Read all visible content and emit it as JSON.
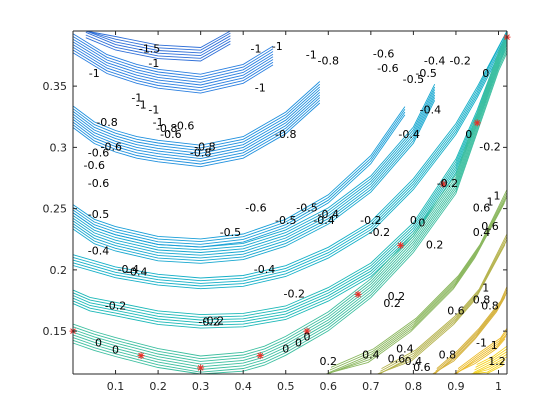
{
  "chart_data": {
    "type": "contour",
    "title": "",
    "xlabel": "",
    "ylabel": "",
    "xlim": [
      0.0,
      1.02
    ],
    "ylim": [
      0.115,
      0.395
    ],
    "xticks": [
      "0.1",
      "0.2",
      "0.3",
      "0.4",
      "0.5",
      "0.6",
      "0.7",
      "0.8",
      "0.9",
      "1"
    ],
    "yticks": [
      "0.15",
      "0.2",
      "0.25",
      "0.3",
      "0.35"
    ],
    "grid": false,
    "colormap": "parula",
    "color_levels": [
      {
        "level": -1.5,
        "color": "#2f6fd8"
      },
      {
        "level": -1,
        "color": "#2a7fe0"
      },
      {
        "level": -0.8,
        "color": "#1f90de"
      },
      {
        "level": -0.6,
        "color": "#1a9fd8"
      },
      {
        "level": -0.5,
        "color": "#19a8d0"
      },
      {
        "level": -0.4,
        "color": "#16b0c8"
      },
      {
        "level": -0.2,
        "color": "#1cb8b8"
      },
      {
        "level": 0,
        "color": "#3dbfa0"
      },
      {
        "level": 0.2,
        "color": "#8cb860"
      },
      {
        "level": 0.4,
        "color": "#b6b450"
      },
      {
        "level": 0.6,
        "color": "#d6b23c"
      },
      {
        "level": 0.8,
        "color": "#ecbc2c"
      },
      {
        "level": 1.2,
        "color": "#f6d420"
      }
    ],
    "series": [
      {
        "level": -0.2,
        "count": 6,
        "x": [
          0.0,
          0.04,
          0.1,
          0.2,
          0.3,
          0.4,
          0.5,
          0.6,
          0.7,
          0.8,
          0.9,
          0.95,
          1.02
        ],
        "y": [
          0.178,
          0.172,
          0.168,
          0.161,
          0.158,
          0.159,
          0.165,
          0.18,
          0.2,
          0.233,
          0.285,
          0.325,
          0.39
        ]
      },
      {
        "level": -0.4,
        "count": 5,
        "x": [
          0.0,
          0.05,
          0.1,
          0.2,
          0.3,
          0.4,
          0.5,
          0.6,
          0.7,
          0.8,
          0.9,
          0.95,
          1.02
        ],
        "y": [
          0.208,
          0.203,
          0.198,
          0.192,
          0.189,
          0.191,
          0.199,
          0.214,
          0.235,
          0.27,
          0.315,
          0.345,
          0.393
        ]
      },
      {
        "level": -0.5,
        "count": 7,
        "x": [
          0.0,
          0.05,
          0.1,
          0.2,
          0.3,
          0.4,
          0.5,
          0.6,
          0.7,
          0.8,
          0.85
        ],
        "y": [
          0.24,
          0.228,
          0.222,
          0.214,
          0.212,
          0.215,
          0.226,
          0.244,
          0.27,
          0.31,
          0.345
        ]
      },
      {
        "level": -0.6,
        "count": 4,
        "x": [
          0.0,
          0.05,
          0.1,
          0.2,
          0.3,
          0.4,
          0.5,
          0.6,
          0.7,
          0.78
        ],
        "y": [
          0.25,
          0.238,
          0.232,
          0.224,
          0.222,
          0.226,
          0.238,
          0.258,
          0.29,
          0.33
        ]
      },
      {
        "level": -0.8,
        "count": 9,
        "x": [
          0.0,
          0.05,
          0.1,
          0.15,
          0.2,
          0.3,
          0.4,
          0.5,
          0.58
        ],
        "y": [
          0.325,
          0.312,
          0.305,
          0.3,
          0.297,
          0.293,
          0.3,
          0.32,
          0.345
        ]
      },
      {
        "level": -1,
        "count": 8,
        "x": [
          0.0,
          0.08,
          0.15,
          0.2,
          0.3,
          0.4,
          0.47
        ],
        "y": [
          0.385,
          0.368,
          0.36,
          0.356,
          0.352,
          0.36,
          0.375
        ]
      },
      {
        "level": -1.5,
        "count": 6,
        "x": [
          0.03,
          0.1,
          0.2,
          0.3,
          0.37
        ],
        "y": [
          0.395,
          0.385,
          0.378,
          0.376,
          0.39
        ]
      },
      {
        "level": 0,
        "count": 8,
        "x": [
          0.0,
          0.05,
          0.1,
          0.2,
          0.3,
          0.4,
          0.45,
          0.5,
          0.6,
          0.7,
          0.8,
          0.9,
          0.95,
          1.0,
          1.02
        ],
        "y": [
          0.148,
          0.142,
          0.137,
          0.128,
          0.122,
          0.125,
          0.13,
          0.138,
          0.158,
          0.185,
          0.222,
          0.27,
          0.32,
          0.37,
          0.385
        ]
      },
      {
        "level": 0.2,
        "count": 6,
        "x": [
          0.6,
          0.7,
          0.8,
          0.9,
          0.95,
          1.02
        ],
        "y": [
          0.115,
          0.13,
          0.155,
          0.19,
          0.215,
          0.26
        ]
      },
      {
        "level": 0.4,
        "count": 5,
        "x": [
          0.72,
          0.8,
          0.9,
          0.95,
          1.02
        ],
        "y": [
          0.115,
          0.13,
          0.16,
          0.18,
          0.225
        ]
      },
      {
        "level": 0.6,
        "count": 5,
        "x": [
          0.85,
          0.9,
          0.95,
          1.0,
          1.02
        ],
        "y": [
          0.115,
          0.13,
          0.148,
          0.17,
          0.182
        ]
      },
      {
        "level": 0.8,
        "count": 5,
        "x": [
          0.9,
          0.95,
          1.0,
          1.02
        ],
        "y": [
          0.115,
          0.128,
          0.14,
          0.148
        ]
      },
      {
        "level": 1.2,
        "count": 8,
        "x": [
          0.94,
          0.98,
          1.02
        ],
        "y": [
          0.115,
          0.122,
          0.13
        ]
      }
    ],
    "markers": {
      "color": "#e8302a",
      "x": [
        0.0,
        0.16,
        0.3,
        0.44,
        0.55,
        0.67,
        0.77,
        0.87,
        0.95,
        1.02
      ],
      "y": [
        0.15,
        0.13,
        0.12,
        0.13,
        0.15,
        0.18,
        0.22,
        0.27,
        0.32,
        0.39
      ]
    },
    "contour_labels": [
      {
        "text": "-1.5",
        "x": 0.18,
        "y": 0.38
      },
      {
        "text": "-1",
        "x": 0.19,
        "y": 0.368
      },
      {
        "text": "-1",
        "x": 0.43,
        "y": 0.38
      },
      {
        "text": "-1",
        "x": 0.48,
        "y": 0.382
      },
      {
        "text": "-1",
        "x": 0.56,
        "y": 0.375
      },
      {
        "text": "-0.8",
        "x": 0.6,
        "y": 0.37
      },
      {
        "text": "-0.6",
        "x": 0.73,
        "y": 0.376
      },
      {
        "text": "-1",
        "x": 0.05,
        "y": 0.36
      },
      {
        "text": "-1",
        "x": 0.15,
        "y": 0.34
      },
      {
        "text": "-1",
        "x": 0.16,
        "y": 0.334
      },
      {
        "text": "-1",
        "x": 0.19,
        "y": 0.33
      },
      {
        "text": "-1",
        "x": 0.2,
        "y": 0.32
      },
      {
        "text": "-1",
        "x": 0.44,
        "y": 0.348
      },
      {
        "text": "-0.8",
        "x": 0.22,
        "y": 0.315
      },
      {
        "text": "-0.8",
        "x": 0.08,
        "y": 0.32
      },
      {
        "text": "-0.8",
        "x": 0.3,
        "y": 0.295
      },
      {
        "text": "-0.8",
        "x": 0.5,
        "y": 0.31
      },
      {
        "text": "-0.6",
        "x": 0.09,
        "y": 0.3
      },
      {
        "text": "-0.6",
        "x": 0.06,
        "y": 0.295
      },
      {
        "text": "-0.6",
        "x": 0.05,
        "y": 0.285
      },
      {
        "text": "-0.6",
        "x": 0.06,
        "y": 0.27
      },
      {
        "text": "-0.6",
        "x": 0.74,
        "y": 0.364
      },
      {
        "text": "-0.6",
        "x": 0.26,
        "y": 0.317
      },
      {
        "text": "-0.6",
        "x": 0.23,
        "y": 0.31
      },
      {
        "text": "-0.8",
        "x": 0.31,
        "y": 0.3
      },
      {
        "text": "-0.5",
        "x": 0.83,
        "y": 0.36
      },
      {
        "text": "-0.5",
        "x": 0.8,
        "y": 0.355
      },
      {
        "text": "-0.4",
        "x": 0.85,
        "y": 0.37
      },
      {
        "text": "-0.4",
        "x": 0.84,
        "y": 0.33
      },
      {
        "text": "-0.4",
        "x": 0.79,
        "y": 0.31
      },
      {
        "text": "-0.2",
        "x": 0.91,
        "y": 0.37
      },
      {
        "text": "-0.2",
        "x": 0.88,
        "y": 0.27
      },
      {
        "text": "-0.2",
        "x": 0.98,
        "y": 0.3
      },
      {
        "text": "-0.5",
        "x": 0.06,
        "y": 0.245
      },
      {
        "text": "-0.4",
        "x": 0.06,
        "y": 0.215
      },
      {
        "text": "-0.4",
        "x": 0.13,
        "y": 0.2
      },
      {
        "text": "-0.4",
        "x": 0.15,
        "y": 0.198
      },
      {
        "text": "-0.4",
        "x": 0.45,
        "y": 0.2
      },
      {
        "text": "-0.5",
        "x": 0.37,
        "y": 0.23
      },
      {
        "text": "-0.6",
        "x": 0.43,
        "y": 0.25
      },
      {
        "text": "-0.5",
        "x": 0.55,
        "y": 0.25
      },
      {
        "text": "-0.5",
        "x": 0.5,
        "y": 0.24
      },
      {
        "text": "-0.4",
        "x": 0.59,
        "y": 0.24
      },
      {
        "text": "-0.4",
        "x": 0.6,
        "y": 0.245
      },
      {
        "text": "-0.2",
        "x": 0.7,
        "y": 0.24
      },
      {
        "text": "-0.2",
        "x": 0.72,
        "y": 0.23
      },
      {
        "text": "-0.2",
        "x": 0.52,
        "y": 0.18
      },
      {
        "text": "-0.2",
        "x": 0.1,
        "y": 0.17
      },
      {
        "text": "-0.2",
        "x": 0.32,
        "y": 0.157
      },
      {
        "text": "-0.2",
        "x": 0.33,
        "y": 0.158
      },
      {
        "text": "0",
        "x": 0.06,
        "y": 0.14
      },
      {
        "text": "0",
        "x": 0.1,
        "y": 0.134
      },
      {
        "text": "0",
        "x": 0.5,
        "y": 0.135
      },
      {
        "text": "0",
        "x": 0.53,
        "y": 0.14
      },
      {
        "text": "0",
        "x": 0.55,
        "y": 0.145
      },
      {
        "text": "0",
        "x": 0.8,
        "y": 0.24
      },
      {
        "text": "0",
        "x": 0.82,
        "y": 0.238
      },
      {
        "text": "0",
        "x": 0.93,
        "y": 0.31
      },
      {
        "text": "0",
        "x": 0.97,
        "y": 0.36
      },
      {
        "text": "0.2",
        "x": 0.6,
        "y": 0.125
      },
      {
        "text": "0.2",
        "x": 0.85,
        "y": 0.22
      },
      {
        "text": "0.2",
        "x": 0.76,
        "y": 0.178
      },
      {
        "text": "0.2",
        "x": 0.75,
        "y": 0.172
      },
      {
        "text": "0.4",
        "x": 0.7,
        "y": 0.13
      },
      {
        "text": "0.4",
        "x": 0.96,
        "y": 0.23
      },
      {
        "text": "0.4",
        "x": 0.78,
        "y": 0.135
      },
      {
        "text": "0.4",
        "x": 0.8,
        "y": 0.125
      },
      {
        "text": "0.6",
        "x": 0.76,
        "y": 0.127
      },
      {
        "text": "0.6",
        "x": 0.82,
        "y": 0.12
      },
      {
        "text": "0.6",
        "x": 0.9,
        "y": 0.166
      },
      {
        "text": "0.6",
        "x": 0.96,
        "y": 0.25
      },
      {
        "text": "0.6",
        "x": 0.98,
        "y": 0.235
      },
      {
        "text": "0.8",
        "x": 0.88,
        "y": 0.13
      },
      {
        "text": "0.8",
        "x": 0.96,
        "y": 0.175
      },
      {
        "text": "0.8",
        "x": 0.98,
        "y": 0.17
      },
      {
        "text": "1",
        "x": 0.97,
        "y": 0.185
      },
      {
        "text": "1",
        "x": 1.0,
        "y": 0.26
      },
      {
        "text": "1",
        "x": 0.98,
        "y": 0.255
      },
      {
        "text": "-1",
        "x": 0.96,
        "y": 0.14
      },
      {
        "text": "1",
        "x": 0.99,
        "y": 0.138
      },
      {
        "text": "1.2",
        "x": 1.0,
        "y": 0.125
      }
    ]
  }
}
